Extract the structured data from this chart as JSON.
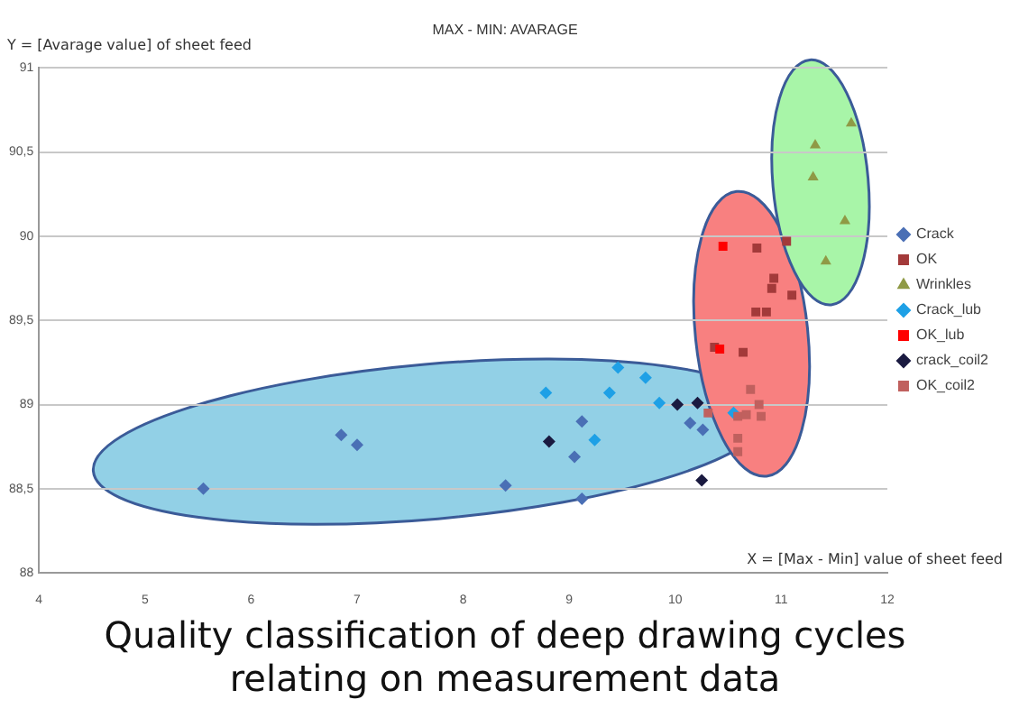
{
  "chart_data": {
    "type": "scatter",
    "title": "MAX - MIN: AVARAGE",
    "xlabel": "X = [Max - Min] value of sheet feed",
    "ylabel": "Y = [Avarage value] of sheet feed",
    "annotations": [
      "Quality classification of deep drawing cycles relating on measurement data"
    ],
    "xlim": [
      4,
      12
    ],
    "xticks": [
      4,
      5,
      6,
      7,
      8,
      9,
      10,
      11,
      12
    ],
    "ylim": [
      88,
      91
    ],
    "yticks": [
      88,
      {
        "value": 88.5,
        "label": "88,5"
      },
      89,
      {
        "value": 89.5,
        "label": "89,5"
      },
      90,
      {
        "value": 90.5,
        "label": "90,5"
      },
      91
    ],
    "grid": "y",
    "legend": "right",
    "series": [
      {
        "name": "Crack",
        "color": "#4a6fb5",
        "marker": "diamond",
        "x": [
          5.55,
          6.85,
          7.0,
          8.4,
          9.05,
          9.12,
          9.12,
          10.14,
          10.26
        ],
        "values": [
          88.5,
          88.82,
          88.76,
          88.52,
          88.69,
          88.9,
          88.44,
          88.89,
          88.85
        ]
      },
      {
        "name": "OK",
        "color": "#a33a3a",
        "marker": "square",
        "x": [
          10.77,
          11.05,
          10.93,
          10.91,
          11.1,
          10.76,
          10.86,
          10.64,
          10.37
        ],
        "values": [
          89.93,
          89.97,
          89.75,
          89.69,
          89.65,
          89.55,
          89.55,
          89.31,
          89.34
        ]
      },
      {
        "name": "Wrinkles",
        "color": "#8f9a45",
        "marker": "triangle",
        "x": [
          11.66,
          11.32,
          11.3,
          11.6,
          11.42
        ],
        "values": [
          90.67,
          90.54,
          90.35,
          90.09,
          89.85
        ]
      },
      {
        "name": "Crack_lub",
        "color": "#1ea0e6",
        "marker": "diamond",
        "x": [
          9.46,
          9.72,
          8.78,
          9.38,
          9.85,
          9.24,
          10.55
        ],
        "values": [
          89.22,
          89.16,
          89.07,
          89.07,
          89.01,
          88.79,
          88.95
        ]
      },
      {
        "name": "OK_lub",
        "color": "#ff0000",
        "marker": "square",
        "x": [
          10.42,
          10.45
        ],
        "values": [
          89.33,
          89.94
        ]
      },
      {
        "name": "crack_coil2",
        "color": "#1a1a40",
        "marker": "diamond",
        "x": [
          10.02,
          10.21,
          8.81,
          10.25
        ],
        "values": [
          89.0,
          89.01,
          88.78,
          88.55
        ]
      },
      {
        "name": "OK_coil2",
        "color": "#c0605e",
        "marker": "square",
        "x": [
          10.31,
          10.59,
          10.71,
          10.79,
          10.81,
          10.59,
          10.59,
          10.67
        ],
        "values": [
          88.95,
          88.93,
          89.09,
          89.0,
          88.93,
          88.8,
          88.72,
          88.94
        ]
      }
    ]
  }
}
